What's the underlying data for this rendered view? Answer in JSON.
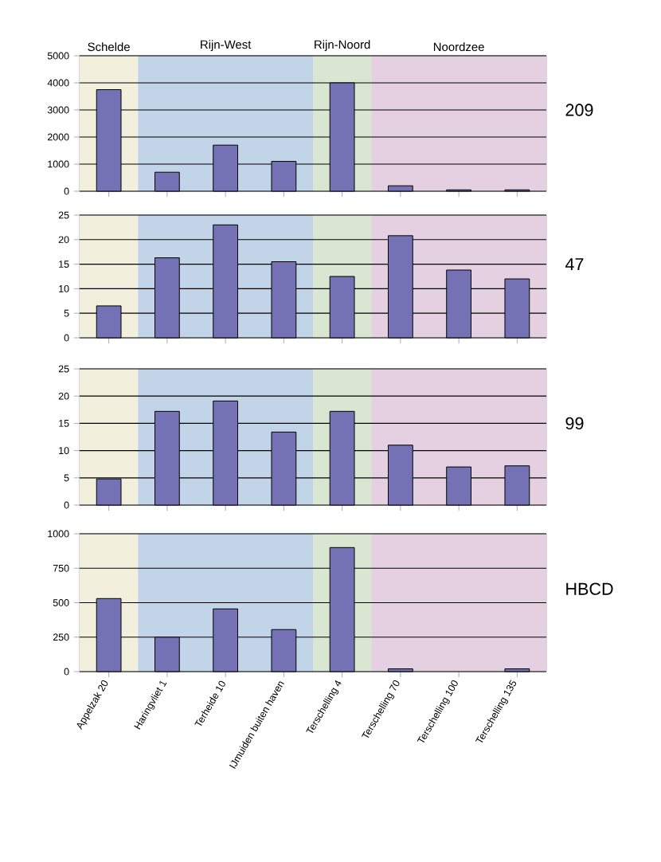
{
  "chart_data": [
    {
      "type": "bar",
      "y2label": "209",
      "categories": [
        "Appelzak 20",
        "Haringvliet 1",
        "Terheide 10",
        "IJmuiden buiten haven",
        "Terschelling 4",
        "Terschelling 70",
        "Terschelling 100",
        "Terschelling 135"
      ],
      "values": [
        3750,
        700,
        1700,
        1100,
        4000,
        200,
        50,
        50
      ],
      "color": "#7472b4",
      "ylim": [
        0,
        5000
      ],
      "yticks": [
        0,
        1000,
        2000,
        3000,
        4000,
        5000
      ],
      "grid": "y",
      "tick_labels": "y",
      "bands": [
        {
          "axis": "x",
          "from": "Appelzak 20",
          "to": "Appelzak 20",
          "label": "Schelde",
          "color": "#f2f0dc"
        },
        {
          "axis": "x",
          "from": "Haringvliet 1",
          "to": "IJmuiden buiten haven",
          "label": "Rijn-West",
          "color": "#c2d4e8"
        },
        {
          "axis": "x",
          "from": "Terschelling 4",
          "to": "Terschelling 4",
          "label": "Rijn-Noord",
          "color": "#d8e6d2"
        },
        {
          "axis": "x",
          "from": "Terschelling 70",
          "to": "Terschelling 135",
          "label": "Noordzee",
          "color": "#e4d0e0"
        }
      ]
    },
    {
      "type": "bar",
      "y2label": "47",
      "categories": [
        "Appelzak 20",
        "Haringvliet 1",
        "Terheide 10",
        "IJmuiden buiten haven",
        "Terschelling 4",
        "Terschelling 70",
        "Terschelling 100",
        "Terschelling 135"
      ],
      "values": [
        6.5,
        16.3,
        23,
        15.5,
        12.5,
        20.8,
        13.8,
        12
      ],
      "color": "#7472b4",
      "ylim": [
        0,
        25
      ],
      "yticks": [
        0,
        5,
        10,
        15,
        20,
        25
      ],
      "grid": "y",
      "tick_labels": "y",
      "bands": [
        {
          "axis": "x",
          "from": "Appelzak 20",
          "to": "Appelzak 20",
          "color": "#f2f0dc"
        },
        {
          "axis": "x",
          "from": "Haringvliet 1",
          "to": "IJmuiden buiten haven",
          "color": "#c2d4e8"
        },
        {
          "axis": "x",
          "from": "Terschelling 4",
          "to": "Terschelling 4",
          "color": "#d8e6d2"
        },
        {
          "axis": "x",
          "from": "Terschelling 70",
          "to": "Terschelling 135",
          "color": "#e4d0e0"
        }
      ]
    },
    {
      "type": "bar",
      "y2label": "99",
      "categories": [
        "Appelzak 20",
        "Haringvliet 1",
        "Terheide 10",
        "IJmuiden buiten haven",
        "Terschelling 4",
        "Terschelling 70",
        "Terschelling 100",
        "Terschelling 135"
      ],
      "values": [
        4.8,
        17.2,
        19.1,
        13.4,
        17.2,
        11,
        7,
        7.2
      ],
      "color": "#7472b4",
      "ylim": [
        0,
        25
      ],
      "yticks": [
        0,
        5,
        10,
        15,
        20,
        25
      ],
      "grid": "y",
      "tick_labels": "y",
      "bands": [
        {
          "axis": "x",
          "from": "Appelzak 20",
          "to": "Appelzak 20",
          "color": "#f2f0dc"
        },
        {
          "axis": "x",
          "from": "Haringvliet 1",
          "to": "IJmuiden buiten haven",
          "color": "#c2d4e8"
        },
        {
          "axis": "x",
          "from": "Terschelling 4",
          "to": "Terschelling 4",
          "color": "#d8e6d2"
        },
        {
          "axis": "x",
          "from": "Terschelling 70",
          "to": "Terschelling 135",
          "color": "#e4d0e0"
        }
      ]
    },
    {
      "type": "bar",
      "y2label": "HBCD",
      "categories": [
        "Appelzak 20",
        "Haringvliet 1",
        "Terheide 10",
        "IJmuiden buiten haven",
        "Terschelling 4",
        "Terschelling 70",
        "Terschelling 100",
        "Terschelling 135"
      ],
      "values": [
        530,
        250,
        455,
        305,
        900,
        20,
        null,
        20
      ],
      "color": "#7472b4",
      "ylim": [
        0,
        1000
      ],
      "yticks": [
        0,
        250,
        500,
        750,
        1000
      ],
      "grid": "y",
      "bands": [
        {
          "axis": "x",
          "from": "Appelzak 20",
          "to": "Appelzak 20",
          "color": "#f2f0dc"
        },
        {
          "axis": "x",
          "from": "Haringvliet 1",
          "to": "IJmuiden buiten haven",
          "color": "#c2d4e8"
        },
        {
          "axis": "x",
          "from": "Terschelling 4",
          "to": "Terschelling 4",
          "color": "#d8e6d2"
        },
        {
          "axis": "x",
          "from": "Terschelling 70",
          "to": "Terschelling 135",
          "color": "#e4d0e0"
        }
      ]
    }
  ]
}
